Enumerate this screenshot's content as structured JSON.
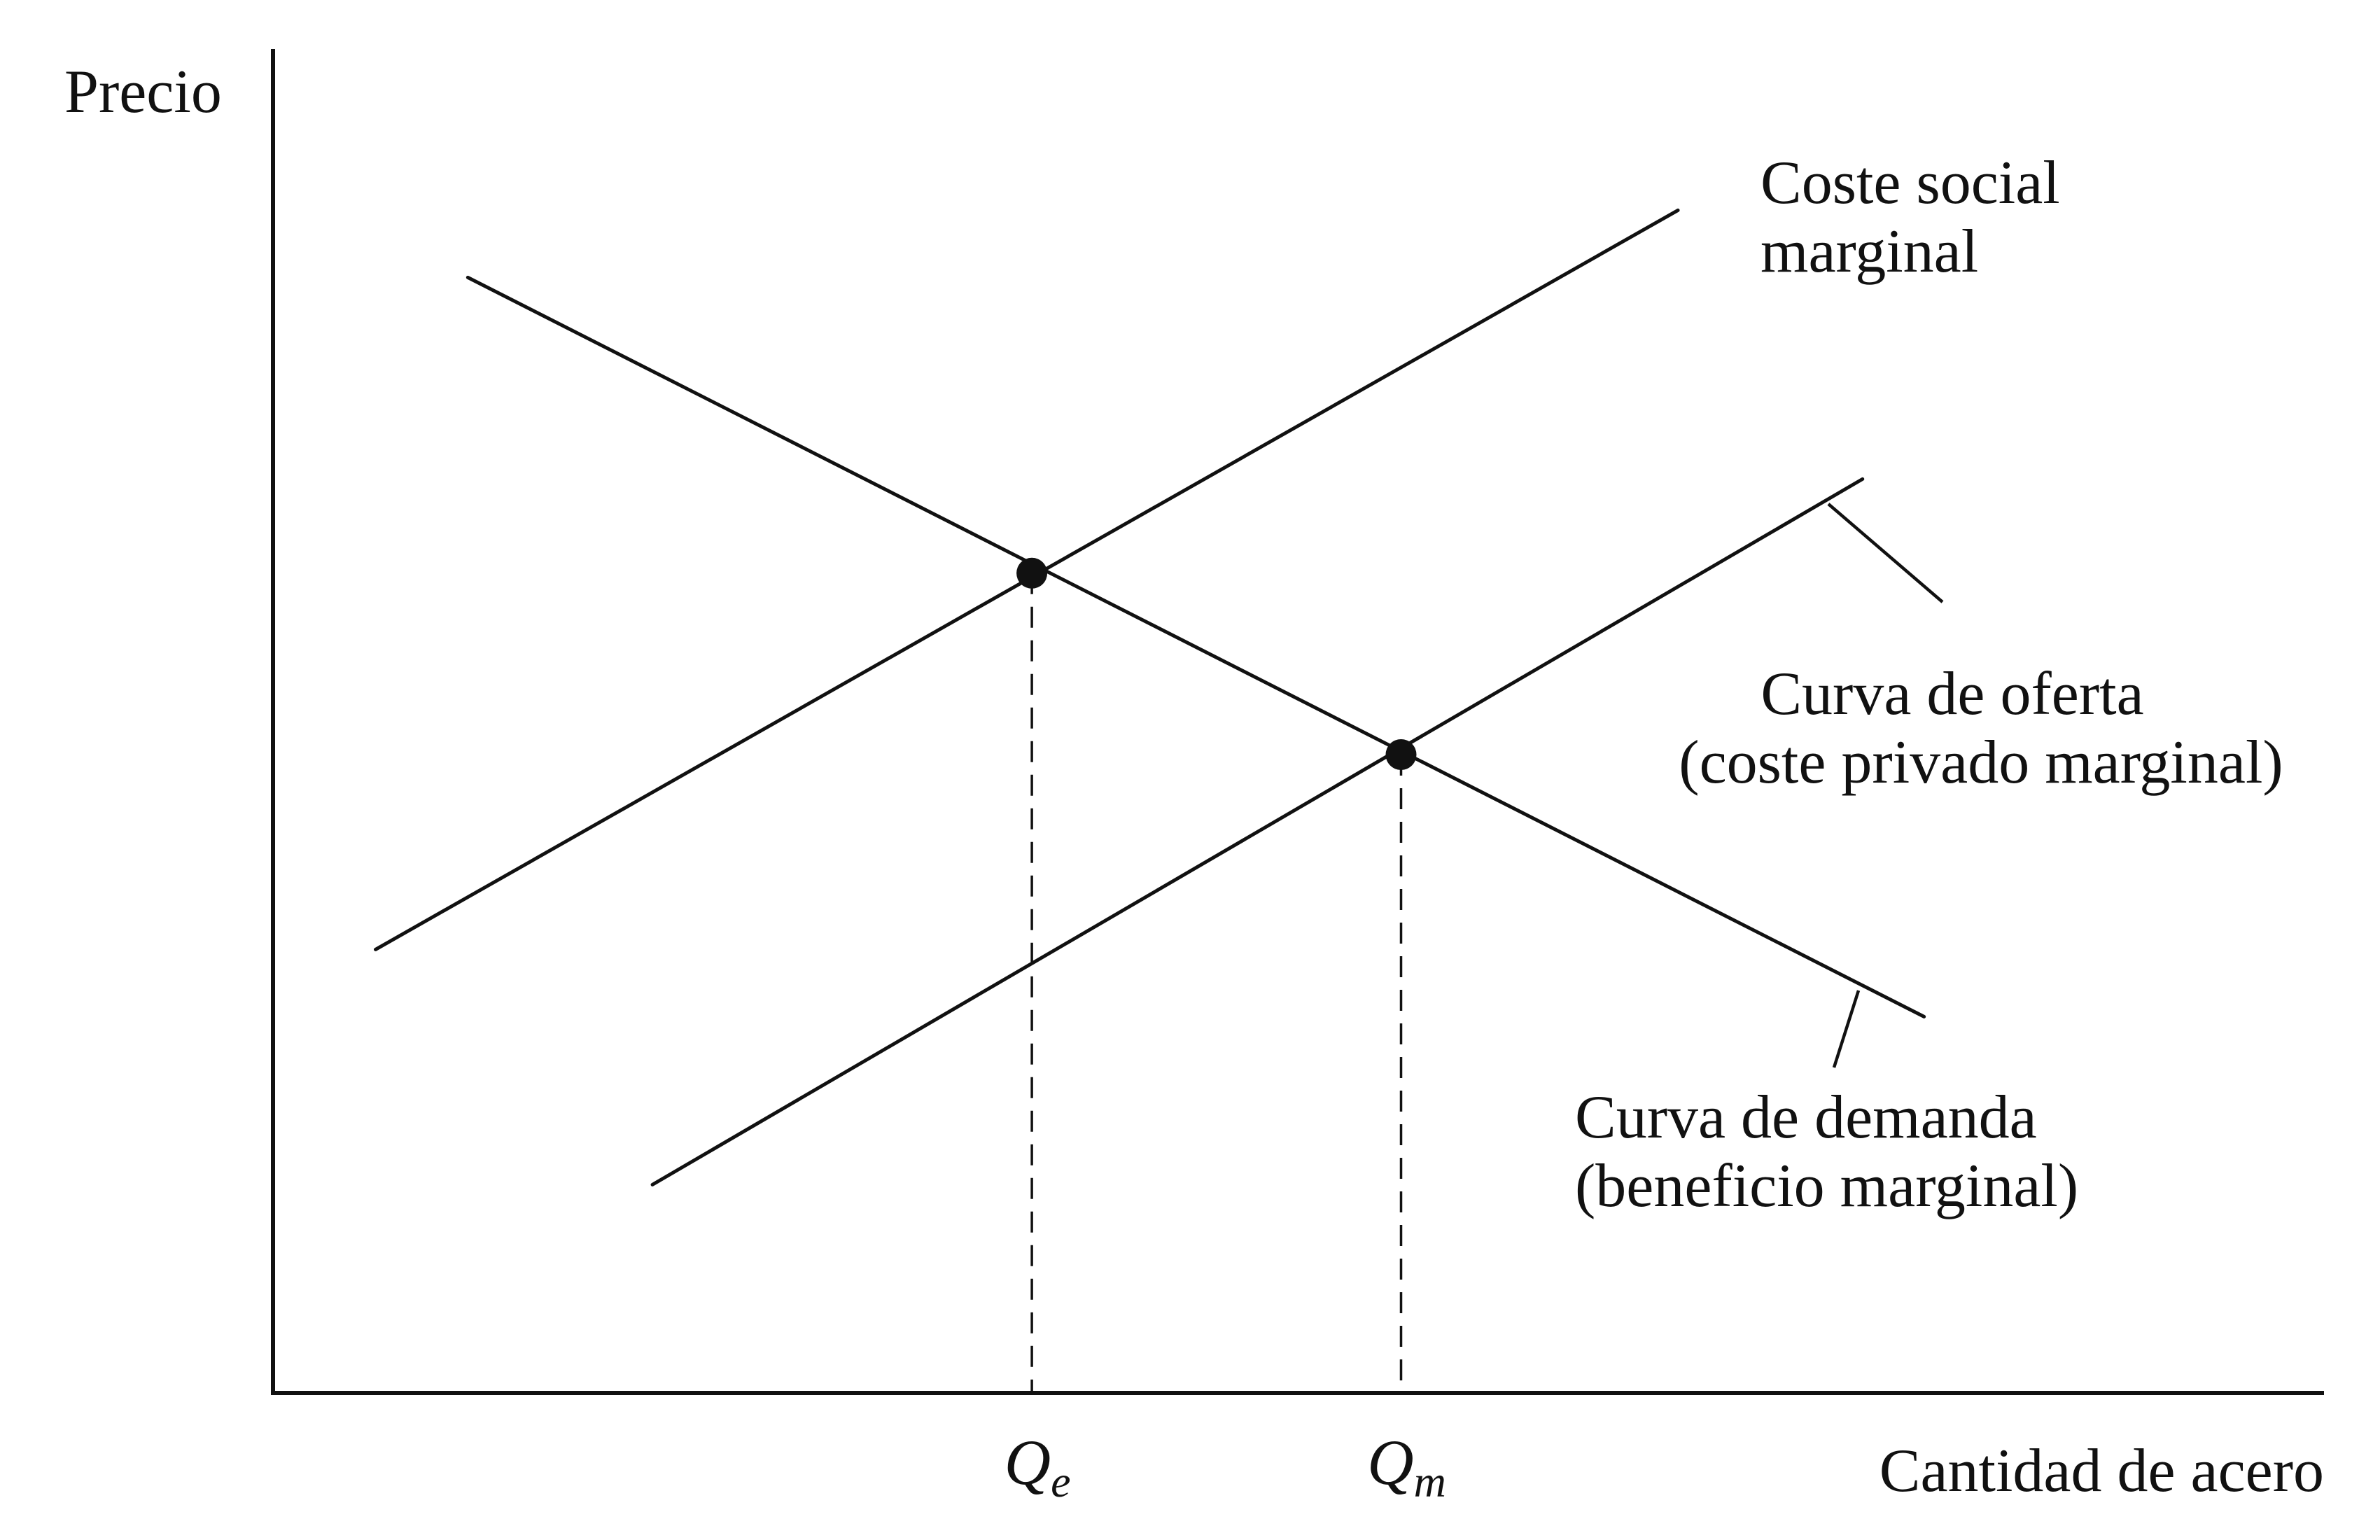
{
  "chart_data": {
    "type": "line",
    "title": "",
    "ylabel": "Precio",
    "xlabel": "Cantidad de acero",
    "xlim": [
      0,
      100
    ],
    "ylim": [
      0,
      100
    ],
    "grid": false,
    "legend": "none",
    "x_ticks": [
      {
        "main": "Q",
        "sub": "e",
        "x": 37
      },
      {
        "main": "Q",
        "sub": "m",
        "x": 55
      }
    ],
    "series": [
      {
        "label_lines": [
          "Coste social",
          "marginal"
        ],
        "points": [
          [
            5,
            33
          ],
          [
            68.5,
            88
          ]
        ]
      },
      {
        "label_lines": [
          "Curva de oferta",
          "(coste privado marginal)"
        ],
        "points": [
          [
            18.5,
            15.5
          ],
          [
            77.5,
            68
          ]
        ]
      },
      {
        "label_lines": [
          "Curva de demanda",
          "(beneficio marginal)"
        ],
        "points": [
          [
            9.5,
            83
          ],
          [
            80.5,
            28
          ]
        ]
      }
    ],
    "equilibria": [
      {
        "x": 37,
        "y": 61
      },
      {
        "x": 55,
        "y": 47.5
      }
    ]
  }
}
